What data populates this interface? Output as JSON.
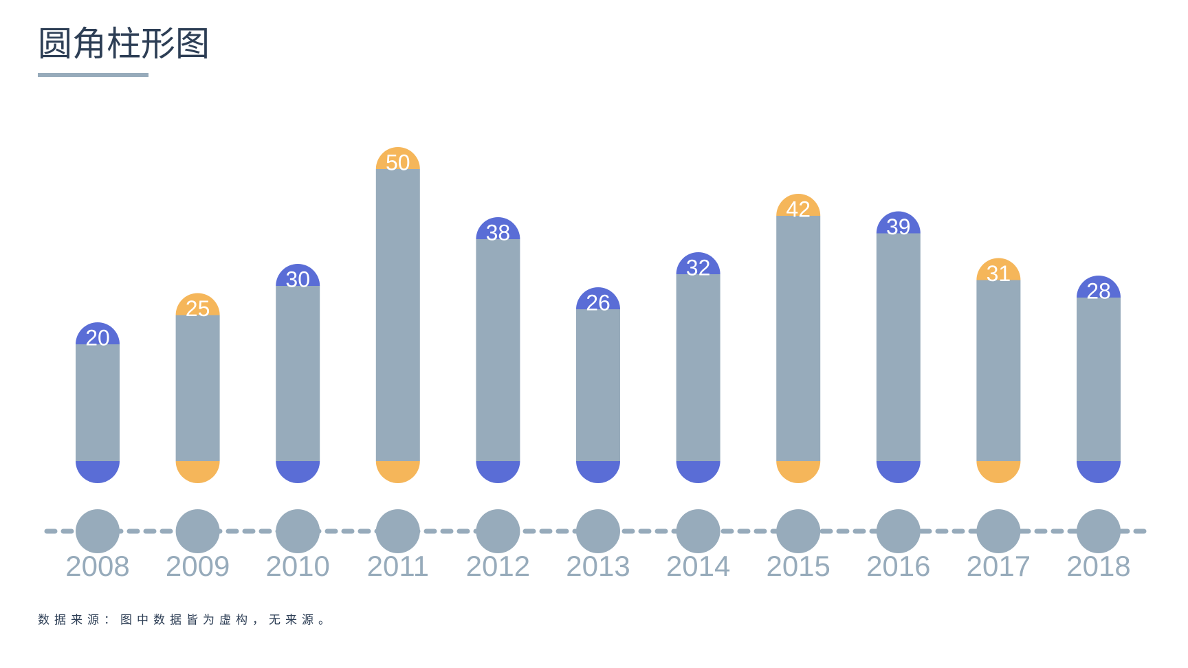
{
  "chart_data": {
    "type": "bar",
    "title": "圆角柱形图",
    "categories": [
      "2008",
      "2009",
      "2010",
      "2011",
      "2012",
      "2013",
      "2014",
      "2015",
      "2016",
      "2017",
      "2018"
    ],
    "values": [
      20,
      25,
      30,
      50,
      38,
      26,
      32,
      42,
      39,
      31,
      28
    ],
    "color": "#97abbb",
    "colors": [
      "#5a6dd6",
      "#f5b65a",
      "#5a6dd6",
      "#f5b65a",
      "#5a6dd6",
      "#5a6dd6",
      "#5a6dd6",
      "#f5b65a",
      "#5a6dd6",
      "#f5b65a",
      "#5a6dd6"
    ],
    "ylim": [
      0,
      50
    ],
    "note": "数据来源：图中数据皆为虚构，无来源。"
  }
}
